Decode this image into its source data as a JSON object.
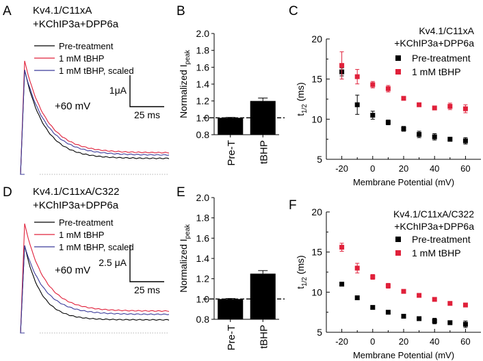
{
  "figure": {
    "panel_letters": [
      "A",
      "B",
      "C",
      "D",
      "E",
      "F"
    ]
  },
  "chart_data": [
    {
      "panel": "A",
      "type": "line",
      "title_lines": [
        "Kv4.1/C11xA",
        "+KChIP3a+DPP6a"
      ],
      "legend": [
        {
          "name": "Pre-treatment",
          "color": "#000000"
        },
        {
          "name": "1 mM tBHP",
          "color": "#e0203a"
        },
        {
          "name": "1 mM tBHP, scaled",
          "color": "#3a3a9a"
        }
      ],
      "annotation": "+60 mV",
      "scalebar": {
        "y_label": "1μA",
        "x_label": "25 ms"
      },
      "series": [
        {
          "name": "Pre-treatment",
          "color": "#000000",
          "peak": 0.92,
          "baseline": 0.14,
          "tau": 0.55
        },
        {
          "name": "1 mM tBHP",
          "color": "#e0203a",
          "peak": 1.0,
          "baseline": 0.19,
          "tau": 0.6
        },
        {
          "name": "1 mM tBHP, scaled",
          "color": "#3a3a9a",
          "peak": 0.92,
          "baseline": 0.17,
          "tau": 0.6
        }
      ]
    },
    {
      "panel": "B",
      "type": "bar",
      "ylabel_main": "Normalized I",
      "ylabel_sub": "peak",
      "categories": [
        "Pre-T",
        "tBHP"
      ],
      "values": [
        1.0,
        1.2
      ],
      "errors": [
        0.005,
        0.035
      ],
      "ylim": [
        0.8,
        2.0
      ],
      "yticks": [
        "0.8",
        "1.0",
        "1.2",
        "1.4",
        "1.6",
        "1.8",
        "2.0"
      ],
      "reference_line": 1.0
    },
    {
      "panel": "C",
      "type": "scatter",
      "title_lines": [
        "Kv4.1/C11xA",
        "+KChIP3a+DPP6a"
      ],
      "xlabel": "Membrane Potential (mV)",
      "ylabel_main": "t",
      "ylabel_sub": "1/2",
      "ylabel_unit": " (ms)",
      "xlim": [
        -30,
        70
      ],
      "ylim": [
        5,
        20
      ],
      "xticks": [
        "-20",
        "0",
        "20",
        "40",
        "60"
      ],
      "yticks": [
        "5",
        "10",
        "15",
        "20"
      ],
      "x": [
        -20,
        -10,
        0,
        10,
        20,
        30,
        40,
        50,
        60
      ],
      "series": [
        {
          "name": "Pre-treatment",
          "color": "#000000",
          "values": [
            15.9,
            11.8,
            10.5,
            9.6,
            8.8,
            8.1,
            7.8,
            7.5,
            7.3
          ],
          "errors": [
            0.5,
            1.2,
            0.5,
            0.3,
            0.3,
            0.4,
            0.4,
            0.25,
            0.4
          ]
        },
        {
          "name": "1 mM tBHP",
          "color": "#e0203a",
          "values": [
            16.7,
            15.3,
            14.3,
            13.8,
            12.6,
            11.8,
            11.4,
            11.6,
            11.3
          ],
          "errors": [
            1.7,
            0.9,
            0.4,
            0.4,
            0.2,
            0.2,
            0.15,
            0.4,
            0.5
          ]
        }
      ]
    },
    {
      "panel": "D",
      "type": "line",
      "title_lines": [
        "Kv4.1/C11xA/C322",
        "+KChIP3a+DPP6a"
      ],
      "legend": [
        {
          "name": "Pre-treatment",
          "color": "#000000"
        },
        {
          "name": "1 mM tBHP",
          "color": "#e0203a"
        },
        {
          "name": "1 mM tBHP, scaled",
          "color": "#3a3a9a"
        }
      ],
      "annotation": "+60 mV",
      "scalebar": {
        "y_label": "2.5 μA",
        "x_label": "25 ms"
      },
      "series": [
        {
          "name": "Pre-treatment",
          "color": "#000000",
          "peak": 0.8,
          "baseline": 0.12,
          "tau": 0.45
        },
        {
          "name": "1 mM tBHP",
          "color": "#e0203a",
          "peak": 1.0,
          "baseline": 0.2,
          "tau": 0.55
        },
        {
          "name": "1 mM tBHP, scaled",
          "color": "#3a3a9a",
          "peak": 0.8,
          "baseline": 0.17,
          "tau": 0.55
        }
      ]
    },
    {
      "panel": "E",
      "type": "bar",
      "ylabel_main": "Normalized I",
      "ylabel_sub": "peak",
      "categories": [
        "Pre-T",
        "tBHP"
      ],
      "values": [
        1.0,
        1.25
      ],
      "errors": [
        0.005,
        0.03
      ],
      "ylim": [
        0.8,
        2.0
      ],
      "yticks": [
        "0.8",
        "1.0",
        "1.2",
        "1.4",
        "1.6",
        "1.8",
        "2.0"
      ],
      "reference_line": 1.0
    },
    {
      "panel": "F",
      "type": "scatter",
      "title_lines": [
        "Kv4.1/C11xA/C322",
        "+KChIP3a+DPP6a"
      ],
      "xlabel": "Membrane Potential (mV)",
      "ylabel_main": "t",
      "ylabel_sub": "1/2",
      "ylabel_unit": " (ms)",
      "xlim": [
        -30,
        70
      ],
      "ylim": [
        5,
        20
      ],
      "xticks": [
        "-20",
        "0",
        "20",
        "40",
        "60"
      ],
      "yticks": [
        "5",
        "10",
        "15",
        "20"
      ],
      "x": [
        -20,
        -10,
        0,
        10,
        20,
        30,
        40,
        50,
        60
      ],
      "series": [
        {
          "name": "Pre-treatment",
          "color": "#000000",
          "values": [
            11.0,
            9.3,
            8.1,
            7.5,
            7.0,
            6.7,
            6.4,
            6.2,
            6.0
          ],
          "errors": [
            0.2,
            0.2,
            0.2,
            0.2,
            0.2,
            0.2,
            0.35,
            0.25,
            0.4
          ]
        },
        {
          "name": "1 mM tBHP",
          "color": "#e0203a",
          "values": [
            15.6,
            13.0,
            11.9,
            10.8,
            10.1,
            9.6,
            9.1,
            8.6,
            8.4
          ],
          "errors": [
            0.5,
            0.6,
            0.3,
            0.3,
            0.2,
            0.2,
            0.2,
            0.2,
            0.2
          ]
        }
      ]
    }
  ]
}
